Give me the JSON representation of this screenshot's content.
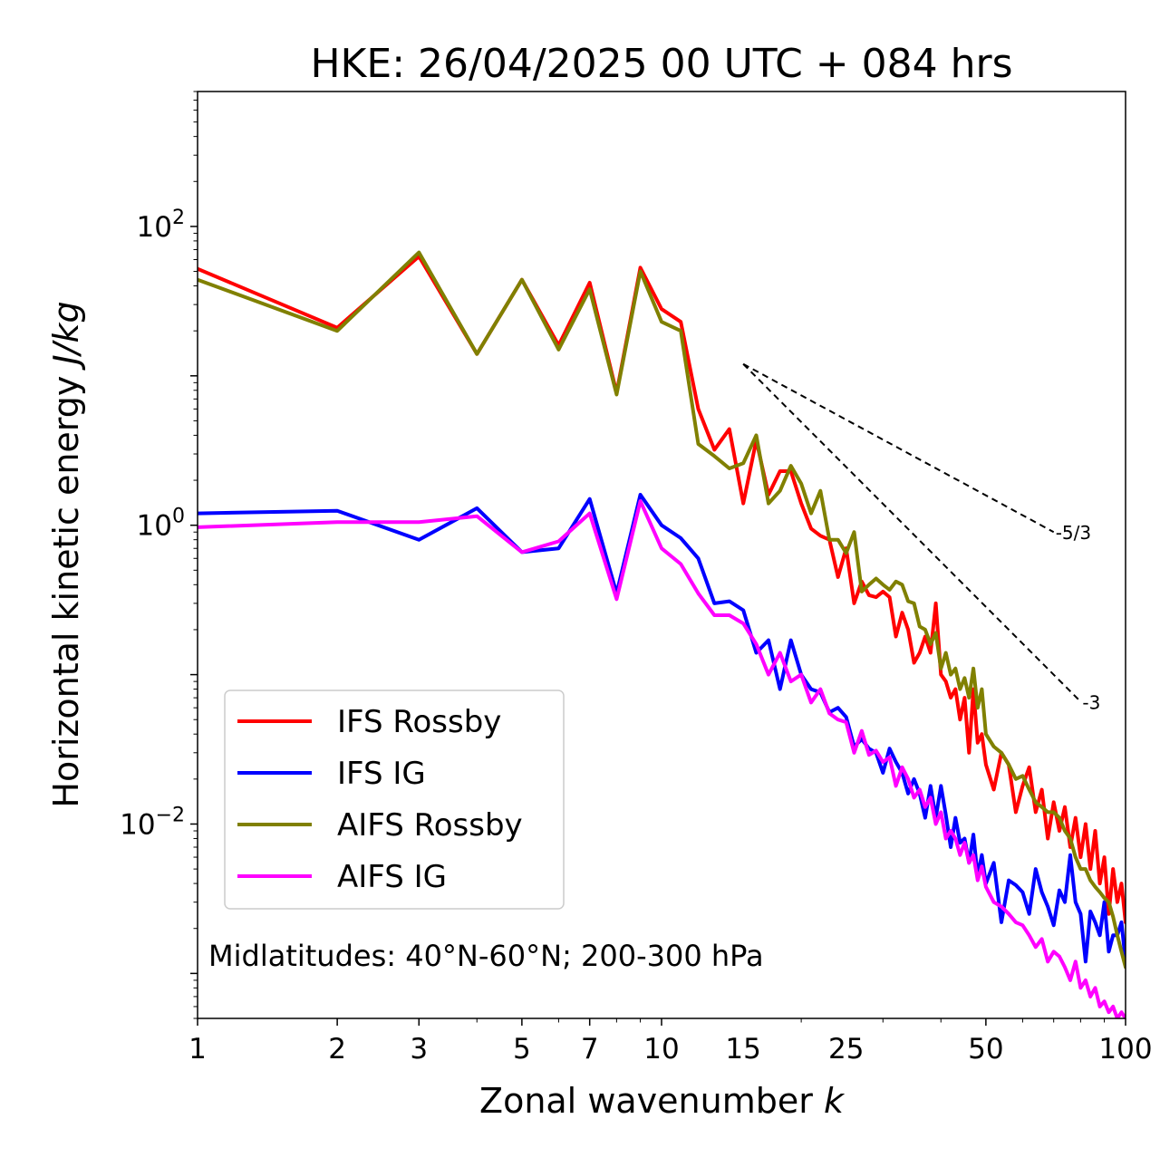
{
  "chart_data": {
    "type": "line",
    "title": "HKE: 26/04/2025 00 UTC + 084 hrs",
    "xlabel": "Zonal wavenumber",
    "xlabel_var": "k",
    "ylabel": "Horizontal kinetic energy",
    "ylabel_unit": "J/kg",
    "xscale": "log",
    "yscale": "log",
    "xlim": [
      1,
      100
    ],
    "ylim": [
      0.0005,
      800
    ],
    "xticks": [
      1,
      2,
      3,
      5,
      7,
      10,
      15,
      25,
      50,
      100
    ],
    "xtick_labels": [
      "1",
      "2",
      "3",
      "5",
      "7",
      "10",
      "15",
      "25",
      "50",
      "100"
    ],
    "yticks": [
      {
        "value": 100,
        "base": "10",
        "exp": "2"
      },
      {
        "value": 1,
        "base": "10",
        "exp": "0"
      },
      {
        "value": 0.01,
        "base": "10",
        "exp": "−2"
      }
    ],
    "grid": false,
    "legend_position": "lower-left",
    "annotation": "Midlatitudes: 40°N-60°N; 200-300 hPa",
    "reference_lines": [
      {
        "label": "-5/3",
        "x": [
          15,
          70
        ],
        "y": [
          12,
          0.9
        ]
      },
      {
        "label": "-3",
        "x": [
          15,
          80
        ],
        "y": [
          12,
          0.066
        ]
      }
    ],
    "series": [
      {
        "name": "IFS Rossby",
        "color": "#ff0000",
        "x": [
          1,
          2,
          3,
          4,
          5,
          6,
          7,
          8,
          9,
          10,
          11,
          12,
          13,
          14,
          15,
          16,
          17,
          18,
          19,
          20,
          21,
          22,
          23,
          24,
          25,
          26,
          27,
          28,
          29,
          30,
          31,
          32,
          33,
          34,
          35,
          36,
          37,
          38,
          39,
          40,
          41,
          42,
          43,
          44,
          45,
          46,
          47,
          48,
          49,
          50,
          52,
          54,
          56,
          58,
          60,
          62,
          64,
          66,
          68,
          70,
          72,
          74,
          76,
          78,
          80,
          82,
          84,
          86,
          88,
          90,
          92,
          94,
          96,
          98,
          100
        ],
        "y": [
          52,
          21,
          63,
          14,
          44,
          16,
          42,
          7.7,
          53,
          28,
          23,
          6,
          3.2,
          4.4,
          1.4,
          3.7,
          1.6,
          2.3,
          2.3,
          1.4,
          0.95,
          0.85,
          0.8,
          0.45,
          0.7,
          0.3,
          0.42,
          0.34,
          0.33,
          0.36,
          0.33,
          0.18,
          0.26,
          0.2,
          0.12,
          0.14,
          0.18,
          0.14,
          0.3,
          0.1,
          0.09,
          0.07,
          0.08,
          0.05,
          0.07,
          0.03,
          0.08,
          0.035,
          0.04,
          0.025,
          0.017,
          0.03,
          0.025,
          0.012,
          0.018,
          0.024,
          0.012,
          0.017,
          0.008,
          0.014,
          0.009,
          0.013,
          0.007,
          0.011,
          0.006,
          0.01,
          0.005,
          0.009,
          0.004,
          0.006,
          0.0025,
          0.005,
          0.003,
          0.004,
          0.0022
        ]
      },
      {
        "name": "IFS IG",
        "color": "#0000ff",
        "x": [
          1,
          2,
          3,
          4,
          5,
          6,
          7,
          8,
          9,
          10,
          11,
          12,
          13,
          14,
          15,
          16,
          17,
          18,
          19,
          20,
          21,
          22,
          23,
          24,
          25,
          26,
          27,
          28,
          29,
          30,
          31,
          32,
          33,
          34,
          35,
          36,
          37,
          38,
          39,
          40,
          41,
          42,
          43,
          44,
          45,
          46,
          47,
          48,
          49,
          50,
          52,
          54,
          56,
          58,
          60,
          62,
          64,
          66,
          68,
          70,
          72,
          74,
          76,
          78,
          80,
          82,
          84,
          86,
          88,
          90,
          92,
          94,
          96,
          98,
          100
        ],
        "y": [
          1.2,
          1.25,
          0.8,
          1.3,
          0.66,
          0.7,
          1.5,
          0.35,
          1.6,
          1.0,
          0.82,
          0.6,
          0.3,
          0.31,
          0.27,
          0.14,
          0.17,
          0.08,
          0.17,
          0.1,
          0.08,
          0.076,
          0.056,
          0.06,
          0.052,
          0.033,
          0.037,
          0.032,
          0.03,
          0.022,
          0.032,
          0.026,
          0.022,
          0.016,
          0.02,
          0.016,
          0.011,
          0.018,
          0.011,
          0.018,
          0.0115,
          0.007,
          0.011,
          0.0075,
          0.008,
          0.0055,
          0.0085,
          0.0045,
          0.0062,
          0.004,
          0.0055,
          0.0022,
          0.0042,
          0.0039,
          0.0035,
          0.0025,
          0.005,
          0.0035,
          0.0028,
          0.0021,
          0.0036,
          0.003,
          0.0062,
          0.003,
          0.0025,
          0.0012,
          0.0026,
          0.0022,
          0.0018,
          0.003,
          0.0014,
          0.0018,
          0.0018,
          0.0022,
          0.0012
        ]
      },
      {
        "name": "AIFS Rossby",
        "color": "#808000",
        "x": [
          1,
          2,
          3,
          4,
          5,
          6,
          7,
          8,
          9,
          10,
          11,
          12,
          13,
          14,
          15,
          16,
          17,
          18,
          19,
          20,
          21,
          22,
          23,
          24,
          25,
          26,
          27,
          28,
          29,
          30,
          31,
          32,
          33,
          34,
          35,
          36,
          37,
          38,
          39,
          40,
          41,
          42,
          43,
          44,
          45,
          46,
          47,
          48,
          49,
          50,
          52,
          54,
          56,
          58,
          60,
          62,
          64,
          66,
          68,
          70,
          72,
          74,
          76,
          78,
          80,
          82,
          84,
          86,
          88,
          90,
          92,
          94,
          96,
          98,
          100
        ],
        "y": [
          44,
          20,
          67,
          14,
          44,
          15,
          38,
          7.5,
          50,
          23,
          20,
          3.5,
          2.9,
          2.4,
          2.6,
          4,
          1.4,
          1.7,
          2.5,
          1.9,
          1.2,
          1.7,
          0.8,
          0.8,
          0.65,
          0.9,
          0.36,
          0.4,
          0.44,
          0.4,
          0.37,
          0.42,
          0.4,
          0.31,
          0.3,
          0.21,
          0.2,
          0.16,
          0.19,
          0.11,
          0.14,
          0.1,
          0.11,
          0.08,
          0.095,
          0.07,
          0.11,
          0.06,
          0.08,
          0.04,
          0.033,
          0.03,
          0.025,
          0.02,
          0.021,
          0.017,
          0.014,
          0.013,
          0.012,
          0.012,
          0.011,
          0.009,
          0.008,
          0.006,
          0.005,
          0.005,
          0.0042,
          0.0038,
          0.0035,
          0.0032,
          0.003,
          0.0024,
          0.0018,
          0.0014,
          0.0011
        ]
      },
      {
        "name": "AIFS IG",
        "color": "#ff00ff",
        "x": [
          1,
          2,
          3,
          4,
          5,
          6,
          7,
          8,
          9,
          10,
          11,
          12,
          13,
          14,
          15,
          16,
          17,
          18,
          19,
          20,
          21,
          22,
          23,
          24,
          25,
          26,
          27,
          28,
          29,
          30,
          31,
          32,
          33,
          34,
          35,
          36,
          37,
          38,
          39,
          40,
          41,
          42,
          43,
          44,
          45,
          46,
          47,
          48,
          49,
          50,
          52,
          54,
          56,
          58,
          60,
          62,
          64,
          66,
          68,
          70,
          72,
          74,
          76,
          78,
          80,
          82,
          84,
          86,
          88,
          90,
          92,
          94,
          96,
          98,
          100
        ],
        "y": [
          0.97,
          1.05,
          1.05,
          1.15,
          0.66,
          0.78,
          1.2,
          0.32,
          1.45,
          0.7,
          0.55,
          0.35,
          0.25,
          0.25,
          0.22,
          0.16,
          0.1,
          0.14,
          0.09,
          0.1,
          0.065,
          0.08,
          0.055,
          0.05,
          0.048,
          0.03,
          0.042,
          0.029,
          0.031,
          0.026,
          0.028,
          0.018,
          0.024,
          0.02,
          0.015,
          0.017,
          0.013,
          0.015,
          0.01,
          0.012,
          0.008,
          0.009,
          0.008,
          0.0062,
          0.0075,
          0.0055,
          0.0062,
          0.0042,
          0.0052,
          0.0038,
          0.003,
          0.0028,
          0.0025,
          0.0022,
          0.0021,
          0.0018,
          0.0015,
          0.0017,
          0.0012,
          0.0014,
          0.0013,
          0.0011,
          0.0009,
          0.0012,
          0.0008,
          0.0009,
          0.0007,
          0.0008,
          0.0006,
          0.00065,
          0.00055,
          0.0006,
          0.0005,
          0.00055,
          0.0005
        ]
      }
    ]
  }
}
